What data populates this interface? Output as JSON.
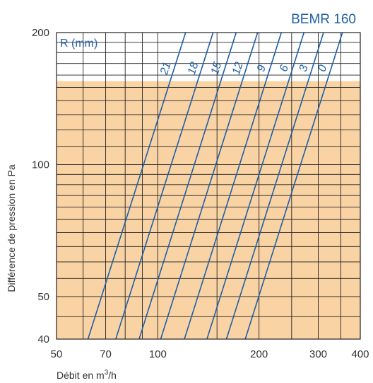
{
  "chart_data": {
    "type": "line",
    "title": "BEMR 160",
    "xlabel_prefix": "Débit en m",
    "xlabel_sup": "3",
    "xlabel_suffix": "/h",
    "ylabel": "Différence de pression en Pa",
    "x_scale": "log",
    "y_scale": "log",
    "xlim": [
      50,
      400
    ],
    "ylim": [
      40,
      200
    ],
    "x_ticks": [
      50,
      70,
      100,
      200,
      300,
      400
    ],
    "y_ticks": [
      40,
      50,
      100,
      200
    ],
    "x_gridlines": [
      50,
      60,
      70,
      80,
      90,
      100,
      150,
      200,
      250,
      300,
      350,
      400
    ],
    "y_gridlines": [
      40,
      45,
      50,
      55,
      60,
      65,
      70,
      75,
      80,
      85,
      90,
      95,
      100,
      110,
      120,
      130,
      140,
      150,
      160,
      170,
      180,
      190,
      200
    ],
    "shaded_region": {
      "y_max": 155,
      "color": "#f9d3a3"
    },
    "legend_title": "R (mm)",
    "grid": true,
    "series": [
      {
        "name": "21",
        "points": [
          [
            62,
            40
          ],
          [
            121,
            200
          ]
        ]
      },
      {
        "name": "18",
        "points": [
          [
            75,
            40
          ],
          [
            146,
            200
          ]
        ]
      },
      {
        "name": "15",
        "points": [
          [
            88,
            40
          ],
          [
            171,
            200
          ]
        ]
      },
      {
        "name": "12",
        "points": [
          [
            102,
            40
          ],
          [
            198,
            200
          ]
        ]
      },
      {
        "name": "9",
        "points": [
          [
            120,
            40
          ],
          [
            233,
            200
          ]
        ]
      },
      {
        "name": "6",
        "points": [
          [
            140,
            40
          ],
          [
            272,
            200
          ]
        ]
      },
      {
        "name": "3",
        "points": [
          [
            160,
            40
          ],
          [
            311,
            200
          ]
        ]
      },
      {
        "name": "0",
        "points": [
          [
            182,
            40
          ],
          [
            354,
            200
          ]
        ]
      }
    ],
    "line_color": "#1f5fa8"
  }
}
